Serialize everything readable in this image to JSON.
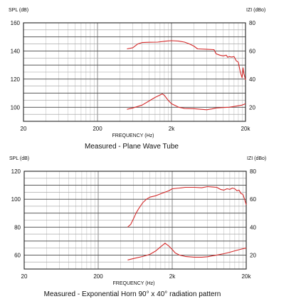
{
  "chart_data": [
    {
      "type": "line",
      "caption": "Measured - Plane Wave Tube",
      "xlabel": "FREQUENCY (Hz)",
      "ylabel_left": "SPL (dB)",
      "ylabel_right": "IZI (dBo)",
      "xscale": "log",
      "xlim": [
        20,
        20000
      ],
      "x_ticks": [
        {
          "v": 20,
          "label": "20"
        },
        {
          "v": 200,
          "label": "200"
        },
        {
          "v": 2000,
          "label": "2k"
        },
        {
          "v": 20000,
          "label": "20k"
        }
      ],
      "ylim_left": [
        90,
        160
      ],
      "y_ticks_left": [
        100,
        120,
        140,
        160
      ],
      "ylim_right": [
        10,
        80
      ],
      "y_ticks_right": [
        20,
        40,
        60,
        80
      ],
      "grid": true,
      "series": [
        {
          "axis": "left",
          "color": "#d42a2a",
          "points": [
            [
              500,
              141.5
            ],
            [
              600,
              142.3
            ],
            [
              700,
              145
            ],
            [
              800,
              146
            ],
            [
              1000,
              146.2
            ],
            [
              1300,
              146.3
            ],
            [
              1700,
              147
            ],
            [
              2000,
              147.3
            ],
            [
              2500,
              147
            ],
            [
              3000,
              146.3
            ],
            [
              3500,
              145
            ],
            [
              4000,
              143.5
            ],
            [
              4500,
              141.5
            ],
            [
              6000,
              141.2
            ],
            [
              7500,
              141
            ],
            [
              8000,
              138
            ],
            [
              9000,
              137
            ],
            [
              10000,
              136.5
            ],
            [
              11000,
              137
            ],
            [
              11500,
              135.5
            ],
            [
              12000,
              136
            ],
            [
              13000,
              135.7
            ],
            [
              14000,
              136
            ],
            [
              15000,
              133
            ],
            [
              16000,
              132
            ],
            [
              17000,
              125
            ],
            [
              18000,
              121
            ],
            [
              18500,
              128
            ],
            [
              19000,
              124
            ],
            [
              20000,
              119.5
            ]
          ]
        },
        {
          "axis": "right",
          "color": "#d42a2a",
          "points": [
            [
              500,
              18.5
            ],
            [
              600,
              19.5
            ],
            [
              800,
              21.5
            ],
            [
              1000,
              24.5
            ],
            [
              1200,
              27
            ],
            [
              1500,
              29.5
            ],
            [
              1600,
              28.5
            ],
            [
              1800,
              25
            ],
            [
              2000,
              22.5
            ],
            [
              2500,
              20
            ],
            [
              3000,
              19.2
            ],
            [
              4000,
              19
            ],
            [
              5000,
              18.5
            ],
            [
              6000,
              18.2
            ],
            [
              6500,
              18.5
            ],
            [
              7000,
              18.8
            ],
            [
              8000,
              19.5
            ],
            [
              10000,
              19.8
            ],
            [
              12000,
              20
            ],
            [
              15000,
              20.8
            ],
            [
              18000,
              21.5
            ],
            [
              20000,
              22.5
            ]
          ]
        }
      ]
    },
    {
      "type": "line",
      "caption": "Measured - Exponential Horn 90° x 40° radiation pattern",
      "xlabel": "FREQUENCY (Hz)",
      "ylabel_left": "SPL (dB)",
      "ylabel_right": "IZI (dBo)",
      "xscale": "log",
      "xlim": [
        20,
        20000
      ],
      "x_ticks": [
        {
          "v": 20,
          "label": "20"
        },
        {
          "v": 200,
          "label": "200"
        },
        {
          "v": 2000,
          "label": "2k"
        },
        {
          "v": 20000,
          "label": "20k"
        }
      ],
      "ylim_left": [
        50,
        120
      ],
      "y_ticks_left": [
        60,
        80,
        100,
        120
      ],
      "ylim_right": [
        10,
        80
      ],
      "y_ticks_right": [
        20,
        40,
        60,
        80
      ],
      "grid": true,
      "series": [
        {
          "axis": "left",
          "color": "#d42a2a",
          "points": [
            [
              500,
              80
            ],
            [
              550,
              82
            ],
            [
              600,
              86
            ],
            [
              650,
              90
            ],
            [
              700,
              93
            ],
            [
              800,
              97.5
            ],
            [
              900,
              100
            ],
            [
              1000,
              101.5
            ],
            [
              1200,
              102.5
            ],
            [
              1500,
              104.5
            ],
            [
              1800,
              106
            ],
            [
              2000,
              107.5
            ],
            [
              2500,
              108
            ],
            [
              3000,
              108.5
            ],
            [
              4000,
              108.5
            ],
            [
              5000,
              108.2
            ],
            [
              6000,
              109
            ],
            [
              7000,
              108.7
            ],
            [
              8000,
              108.5
            ],
            [
              9000,
              107
            ],
            [
              10000,
              106.5
            ],
            [
              11000,
              107.5
            ],
            [
              12000,
              107
            ],
            [
              13000,
              108
            ],
            [
              14000,
              107.5
            ],
            [
              15000,
              106
            ],
            [
              16000,
              106.5
            ],
            [
              17000,
              104
            ],
            [
              18000,
              103.5
            ],
            [
              19000,
              100
            ],
            [
              20000,
              96
            ]
          ]
        },
        {
          "axis": "right",
          "color": "#d42a2a",
          "points": [
            [
              500,
              16.5
            ],
            [
              600,
              17.5
            ],
            [
              800,
              19
            ],
            [
              1000,
              20.5
            ],
            [
              1200,
              23
            ],
            [
              1400,
              26
            ],
            [
              1600,
              28.5
            ],
            [
              1800,
              26.5
            ],
            [
              2000,
              24
            ],
            [
              2200,
              21.5
            ],
            [
              2500,
              20
            ],
            [
              3000,
              19
            ],
            [
              4000,
              18.5
            ],
            [
              5000,
              18.5
            ],
            [
              6000,
              18.8
            ],
            [
              7000,
              19.5
            ],
            [
              8000,
              20
            ],
            [
              10000,
              21
            ],
            [
              12000,
              22
            ],
            [
              15000,
              23.5
            ],
            [
              18000,
              24.5
            ],
            [
              20000,
              25
            ]
          ]
        }
      ]
    }
  ]
}
